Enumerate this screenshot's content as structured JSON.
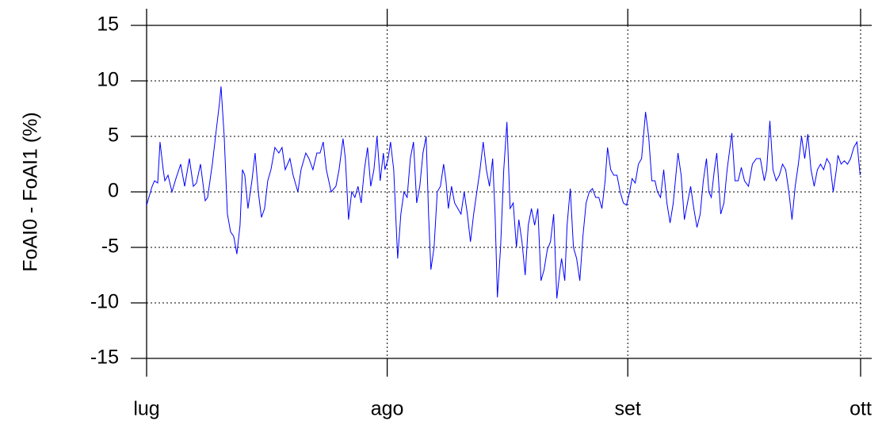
{
  "chart_data": {
    "type": "line",
    "ylabel": "FoAI0 - FoAI1  (%)",
    "xlim": [
      0,
      92
    ],
    "xticks": [
      {
        "value": 0,
        "label": "lug"
      },
      {
        "value": 31,
        "label": "ago"
      },
      {
        "value": 62,
        "label": "set"
      },
      {
        "value": 92,
        "label": "ott"
      }
    ],
    "ylim": [
      -16.5,
      16.5
    ],
    "yticks": [
      15,
      10,
      5,
      0,
      -5,
      -10,
      -15
    ],
    "grid": true,
    "x": [
      0,
      0.71,
      1.02,
      1.43,
      1.73,
      2.14,
      2.35,
      2.76,
      3.27,
      3.78,
      4.39,
      4.9,
      5.51,
      6.02,
      6.43,
      6.94,
      7.55,
      7.86,
      8.47,
      8.88,
      9.39,
      9.59,
      10.0,
      10.41,
      10.82,
      11.22,
      11.63,
      12.04,
      12.35,
      12.65,
      13.06,
      13.57,
      13.98,
      14.39,
      14.8,
      15.2,
      15.61,
      16.02,
      16.53,
      17.04,
      17.45,
      17.86,
      18.47,
      18.88,
      19.49,
      19.9,
      20.51,
      20.92,
      21.43,
      21.94,
      22.35,
      22.76,
      23.16,
      23.78,
      24.39,
      24.8,
      25.31,
      25.61,
      26.02,
      26.43,
      26.84,
      27.24,
      27.65,
      28.06,
      28.47,
      28.88,
      29.29,
      29.69,
      30.1,
      30.51,
      30.71,
      31.12,
      31.43,
      31.84,
      32.35,
      32.76,
      33.16,
      33.57,
      33.98,
      34.39,
      34.8,
      35.2,
      35.61,
      36.02,
      36.33,
      36.63,
      37.04,
      37.45,
      37.86,
      38.27,
      38.57,
      38.88,
      39.29,
      39.69,
      40.1,
      40.51,
      40.92,
      41.33,
      41.73,
      42.14,
      42.55,
      42.96,
      43.37,
      43.78,
      44.18,
      44.59,
      44.9,
      45.2,
      45.61,
      46.02,
      46.43,
      46.84,
      47.24,
      47.65,
      47.96,
      48.37,
      48.78,
      49.18,
      49.59,
      50.0,
      50.41,
      50.82,
      51.22,
      51.63,
      52.04,
      52.45,
      52.86,
      53.27,
      53.47,
      53.88,
      54.18,
      54.59,
      55.0,
      55.41,
      55.82,
      56.22,
      56.63,
      57.04,
      57.45,
      57.86,
      58.27,
      58.67,
      59.08,
      59.39,
      59.8,
      60.2,
      60.61,
      61.02,
      61.43,
      61.84,
      62.24,
      62.55,
      62.96,
      63.37,
      63.78,
      64.29,
      64.69,
      65.1,
      65.51,
      65.82,
      66.22,
      66.63,
      67.04,
      67.45,
      67.86,
      68.47,
      68.88,
      69.29,
      69.69,
      70.1,
      70.51,
      70.92,
      71.33,
      71.73,
      72.14,
      72.45,
      72.76,
      73.16,
      73.47,
      73.98,
      74.39,
      74.8,
      75.41,
      75.82,
      76.22,
      76.63,
      77.04,
      77.55,
      78.06,
      78.57,
      79.08,
      79.59,
      79.9,
      80.31,
      80.71,
      81.12,
      81.53,
      81.94,
      82.35,
      82.76,
      83.16,
      83.57,
      83.98,
      84.39,
      84.8,
      85.2,
      85.61,
      86.02,
      86.43,
      86.84,
      87.24,
      87.65,
      88.06,
      88.47,
      88.88,
      89.08,
      89.49,
      89.9,
      90.31,
      90.71,
      91.12,
      91.53,
      91.94
    ],
    "series": [
      {
        "color": "#0000ff",
        "values": [
          -1.2,
          0.5,
          1,
          0.8,
          4.5,
          2,
          1,
          1.5,
          0,
          1.2,
          2.5,
          0.5,
          3,
          0.5,
          0.8,
          2.5,
          -0.8,
          -0.5,
          2.5,
          5,
          8,
          9.5,
          5,
          -2,
          -3.6,
          -4,
          -5.6,
          -3,
          2,
          1.5,
          -1.5,
          1,
          3.5,
          0,
          -2.3,
          -1.5,
          1,
          2,
          4,
          3.5,
          4,
          2,
          3,
          1.5,
          0,
          2,
          3.5,
          3,
          2,
          3.5,
          3.5,
          4.5,
          2,
          0,
          0.5,
          2,
          4.8,
          3,
          -2.5,
          0,
          -0.5,
          0.5,
          -1,
          2,
          4,
          0.5,
          2,
          5,
          1,
          3.5,
          2,
          3,
          4.5,
          2,
          -6,
          -2,
          0,
          -0.5,
          3,
          4.5,
          -1,
          0.5,
          3.5,
          5,
          -2,
          -7,
          -5,
          0,
          0.5,
          2.5,
          1,
          -1.5,
          0.5,
          -1,
          -1.5,
          -2,
          0,
          -2,
          -4.5,
          -2,
          0,
          2,
          4.5,
          2,
          0.5,
          3,
          -2,
          -9.5,
          -5,
          2,
          6.3,
          -1.5,
          -1,
          -5,
          -2.5,
          -4.5,
          -7.5,
          -3,
          -1.5,
          -3,
          -1.5,
          -8,
          -7,
          -5.2,
          -4.5,
          -2,
          -9.6,
          -7,
          -6,
          -8,
          -3,
          0.3,
          -5,
          -6,
          -8,
          -4,
          -1,
          0,
          0.3,
          -0.5,
          -0.5,
          -1.5,
          1,
          4,
          2,
          1.5,
          1.5,
          0,
          -1,
          -1.2,
          0,
          1.2,
          0.8,
          2.5,
          3,
          7.2,
          5,
          1,
          1,
          0,
          -0.5,
          2,
          -1,
          -2.8,
          -1,
          3.5,
          1.5,
          -2.5,
          -1,
          0.5,
          -1.5,
          -3.2,
          -2,
          1,
          3,
          0,
          -0.5,
          2,
          3.5,
          -2,
          -1,
          2,
          5.3,
          1,
          1,
          2.2,
          1,
          0.5,
          2.5,
          3,
          3,
          1,
          2,
          6.4,
          2,
          1,
          1.5,
          2.5,
          2,
          0,
          -2.5,
          0.5,
          2.5,
          5,
          3,
          5.2,
          2,
          0.5,
          2,
          2.5,
          2,
          3,
          2.5,
          0,
          2,
          3.3,
          2.5,
          2.8,
          2.5,
          3,
          4,
          4.5,
          1.5
        ]
      }
    ]
  }
}
